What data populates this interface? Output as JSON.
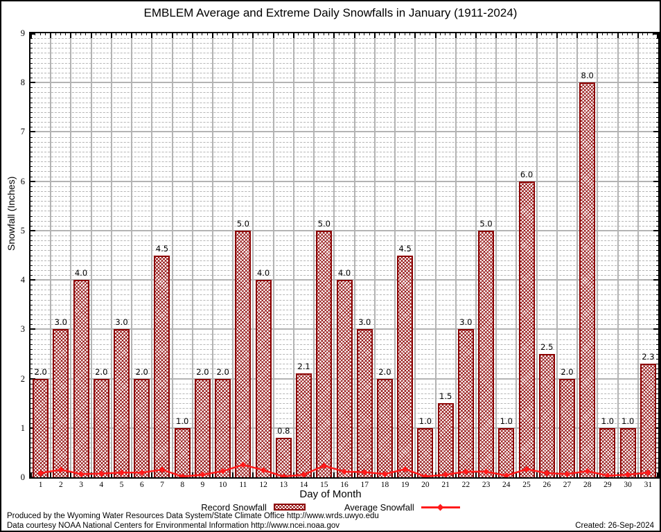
{
  "chart_data": {
    "type": "bar",
    "title": "EMBLEM Average and Extreme Daily Snowfalls in January (1911-2024)",
    "xlabel": "Day of Month",
    "ylabel": "Snowfall (Inches)",
    "ylim": [
      0,
      9
    ],
    "y_major_step": 1,
    "y_minor_step": 0.1,
    "grid": "major-solid-minor-dashed",
    "legend_position": "bottom-center",
    "x_categories": [
      1,
      2,
      3,
      4,
      5,
      6,
      7,
      8,
      9,
      10,
      11,
      12,
      13,
      14,
      15,
      16,
      17,
      18,
      19,
      20,
      21,
      22,
      23,
      24,
      25,
      26,
      27,
      28,
      29,
      30,
      31
    ],
    "series": [
      {
        "name": "Record Snowfall",
        "type": "bar",
        "values": [
          2.0,
          3.0,
          4.0,
          2.0,
          3.0,
          2.0,
          4.5,
          1.0,
          2.0,
          2.0,
          5.0,
          4.0,
          0.8,
          2.1,
          5.0,
          4.0,
          3.0,
          2.0,
          4.5,
          1.0,
          1.5,
          3.0,
          5.0,
          1.0,
          6.0,
          2.5,
          2.0,
          8.0,
          1.0,
          1.0,
          2.3
        ],
        "value_labels": [
          "2.0",
          "3.0",
          "4.0",
          "2.0",
          "3.0",
          "2.0",
          "4.5",
          "1.0",
          "2.0",
          "2.0",
          "5.0",
          "4.0",
          "0.8",
          "2.1",
          "5.0",
          "4.0",
          "3.0",
          "2.0",
          "4.5",
          "1.0",
          "1.5",
          "3.0",
          "5.0",
          "1.0",
          "6.0",
          "2.5",
          "2.0",
          "8.0",
          "1.0",
          "1.0",
          "2.3"
        ]
      },
      {
        "name": "Average Snowfall",
        "type": "line",
        "values": [
          0.07,
          0.14,
          0.05,
          0.06,
          0.08,
          0.08,
          0.14,
          0.0,
          0.04,
          0.11,
          0.24,
          0.13,
          0.0,
          0.04,
          0.22,
          0.1,
          0.09,
          0.05,
          0.15,
          0.0,
          0.04,
          0.1,
          0.1,
          0.02,
          0.15,
          0.07,
          0.05,
          0.11,
          0.02,
          0.04,
          0.08
        ]
      }
    ]
  },
  "colors": {
    "bar_edge": "#8b0000",
    "line": "#ff1a1a",
    "grid_major": "#b3b3b3",
    "grid_minor": "#b5b5b5"
  },
  "footer": {
    "produced_by": "Produced by the Wyoming Water Resources Data System/State Climate Office http://www.wrds.uwyo.edu",
    "data_courtesy": "Data courtesy NOAA National Centers for Environmental Information http://www.ncei.noaa.gov",
    "created": "Created: 26-Sep-2024"
  }
}
